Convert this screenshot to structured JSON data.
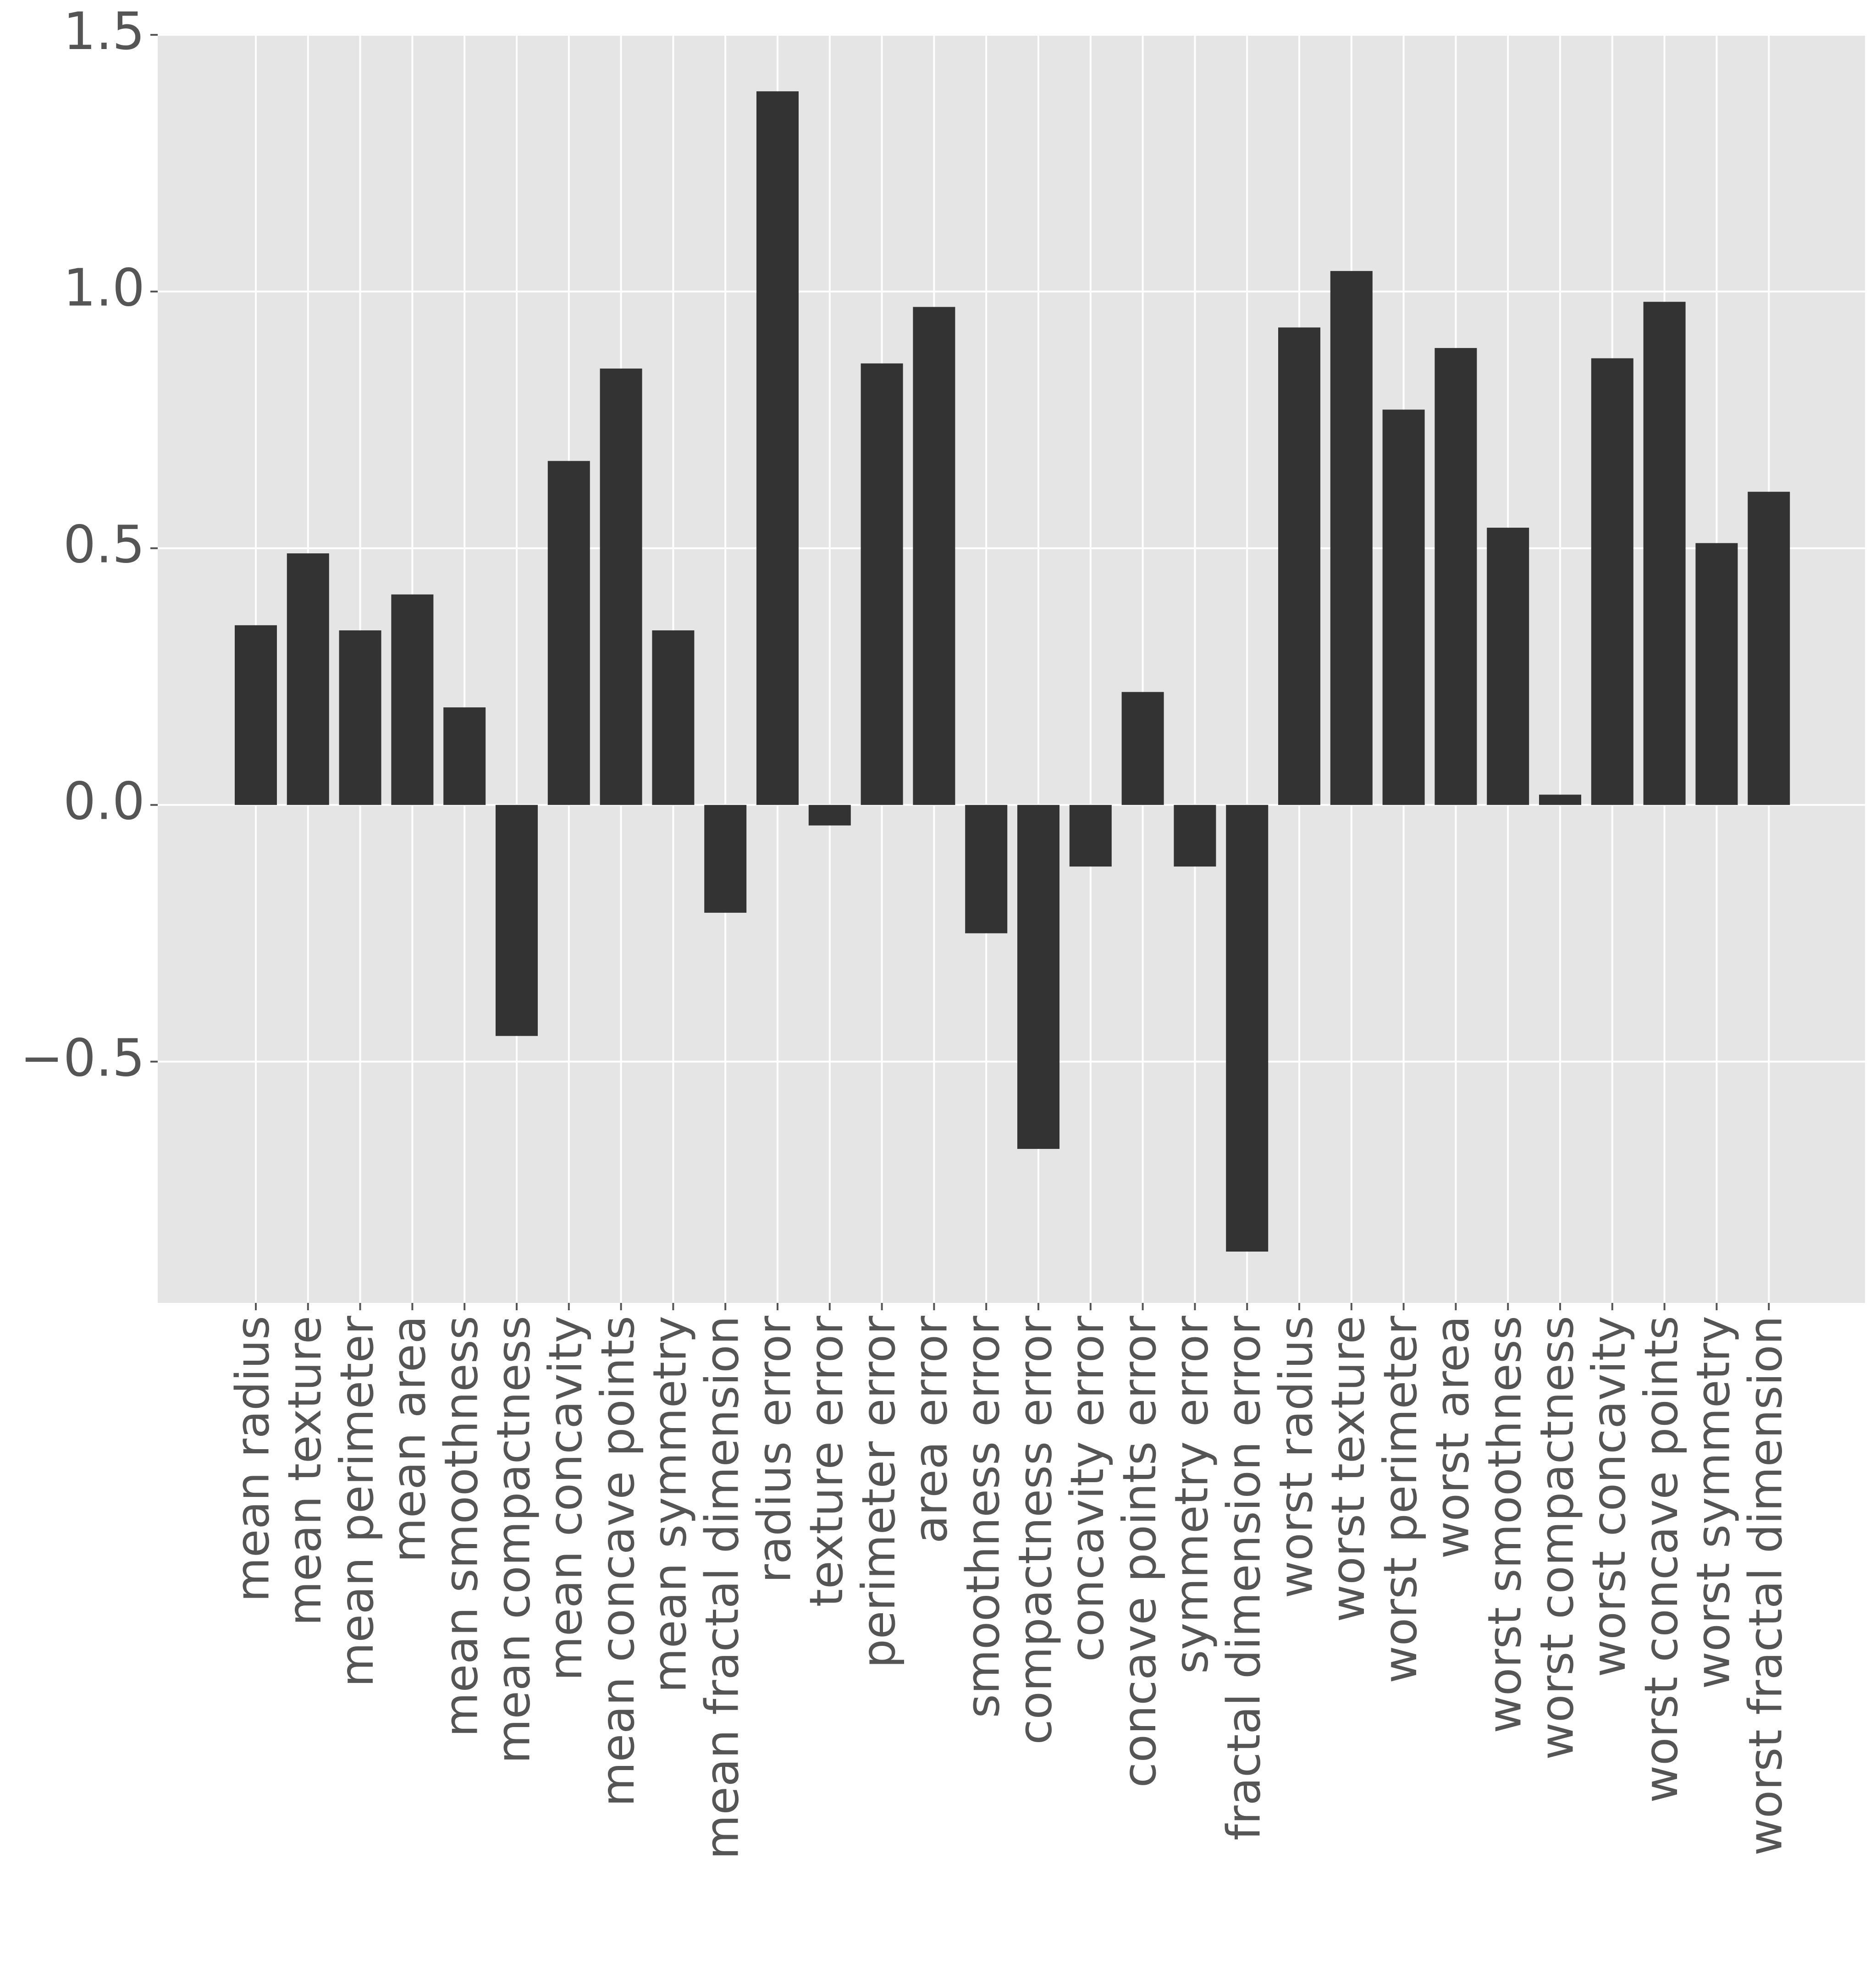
{
  "chart_data": {
    "type": "bar",
    "title": "",
    "xlabel": "",
    "ylabel": "",
    "ylim": [
      -0.97,
      1.5
    ],
    "yticks": [
      -0.5,
      0.0,
      0.5,
      1.0,
      1.5
    ],
    "ytick_labels": [
      "−0.5",
      "0.0",
      "0.5",
      "1.0",
      "1.5"
    ],
    "grid": true,
    "bar_color": "#333333",
    "background_color": "#e5e5e5",
    "grid_color": "#ffffff",
    "categories": [
      "mean radius",
      "mean texture",
      "mean perimeter",
      "mean area",
      "mean smoothness",
      "mean compactness",
      "mean concavity",
      "mean concave points",
      "mean symmetry",
      "mean fractal dimension",
      "radius error",
      "texture error",
      "perimeter error",
      "area error",
      "smoothness error",
      "compactness error",
      "concavity error",
      "concave points error",
      "symmetry error",
      "fractal dimension error",
      "worst radius",
      "worst texture",
      "worst perimeter",
      "worst area",
      "worst smoothness",
      "worst compactness",
      "worst concavity",
      "worst concave points",
      "worst symmetry",
      "worst fractal dimension"
    ],
    "values": [
      0.35,
      0.49,
      0.34,
      0.41,
      0.19,
      -0.45,
      0.67,
      0.85,
      0.34,
      -0.21,
      1.39,
      -0.04,
      0.86,
      0.97,
      -0.25,
      -0.67,
      -0.12,
      0.22,
      -0.12,
      -0.87,
      0.93,
      1.04,
      0.77,
      0.89,
      0.54,
      0.02,
      0.87,
      0.98,
      0.51,
      0.61
    ]
  }
}
